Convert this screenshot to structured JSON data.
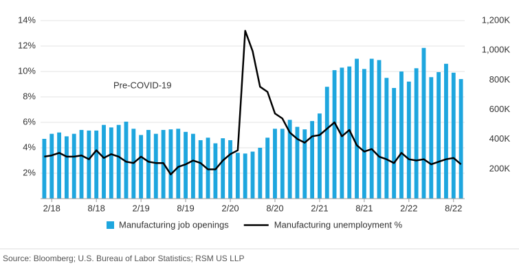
{
  "chart_data": {
    "type": "bar-line",
    "annotation": "Pre-COVID-19",
    "source": "Source: Bloomberg; U.S. Bureau of Labor Statistics; RSM US LLP",
    "categories": [
      null,
      "2/18",
      null,
      null,
      null,
      null,
      null,
      "8/18",
      null,
      null,
      null,
      null,
      null,
      "2/19",
      null,
      null,
      null,
      null,
      null,
      "8/19",
      null,
      null,
      null,
      null,
      null,
      "2/20",
      null,
      null,
      null,
      null,
      null,
      "8/20",
      null,
      null,
      null,
      null,
      null,
      "2/21",
      null,
      null,
      null,
      null,
      null,
      "8/21",
      null,
      null,
      null,
      null,
      null,
      "2/22",
      null,
      null,
      null,
      null,
      null,
      "8/22",
      null
    ],
    "series": [
      {
        "name": "Manufacturing job openings",
        "type": "bar",
        "axis": "y2",
        "color": "#1ea6de",
        "values": [
          403,
          437,
          446,
          420,
          437,
          463,
          459,
          459,
          497,
          480,
          497,
          519,
          471,
          429,
          463,
          437,
          463,
          467,
          471,
          450,
          437,
          394,
          411,
          373,
          407,
          394,
          309,
          304,
          317,
          343,
          411,
          471,
          471,
          531,
          484,
          467,
          523,
          574,
          754,
          866,
          883,
          891,
          943,
          874,
          943,
          934,
          814,
          746,
          857,
          789,
          879,
          1016,
          819,
          853,
          909,
          849,
          806
        ]
      },
      {
        "name": "Manufacturing unemployment %",
        "type": "line",
        "axis": "y",
        "color": "#000000",
        "values": [
          3.3,
          3.4,
          3.6,
          3.3,
          3.3,
          3.4,
          3.1,
          3.8,
          3.2,
          3.5,
          3.3,
          2.9,
          2.8,
          3.3,
          2.9,
          2.8,
          2.8,
          1.9,
          2.5,
          2.7,
          3.0,
          2.8,
          2.3,
          2.3,
          3.0,
          3.5,
          3.8,
          13.2,
          11.6,
          8.8,
          8.4,
          6.7,
          6.3,
          5.2,
          4.7,
          4.4,
          4.9,
          5.0,
          5.5,
          6.0,
          4.9,
          5.4,
          4.2,
          3.7,
          3.9,
          3.3,
          3.1,
          2.8,
          3.6,
          3.1,
          3.0,
          3.1,
          2.7,
          2.9,
          3.1,
          3.2,
          2.7
        ]
      }
    ],
    "ylim": [
      0,
      14
    ],
    "yticks": [
      {
        "value": 2,
        "label": "2%"
      },
      {
        "value": 4,
        "label": "4%"
      },
      {
        "value": 6,
        "label": "6%"
      },
      {
        "value": 8,
        "label": "8%"
      },
      {
        "value": 10,
        "label": "10%"
      },
      {
        "value": 12,
        "label": "12%"
      },
      {
        "value": 14,
        "label": "14%"
      }
    ],
    "y2lim": [
      0,
      1200
    ],
    "y2ticks": [
      {
        "value": 200,
        "label": "200K"
      },
      {
        "value": 400,
        "label": "400K"
      },
      {
        "value": 600,
        "label": "600K"
      },
      {
        "value": 800,
        "label": "800K"
      },
      {
        "value": 1000,
        "label": "1,000K"
      },
      {
        "value": 1200,
        "label": "1,200K"
      }
    ],
    "grid": true
  }
}
